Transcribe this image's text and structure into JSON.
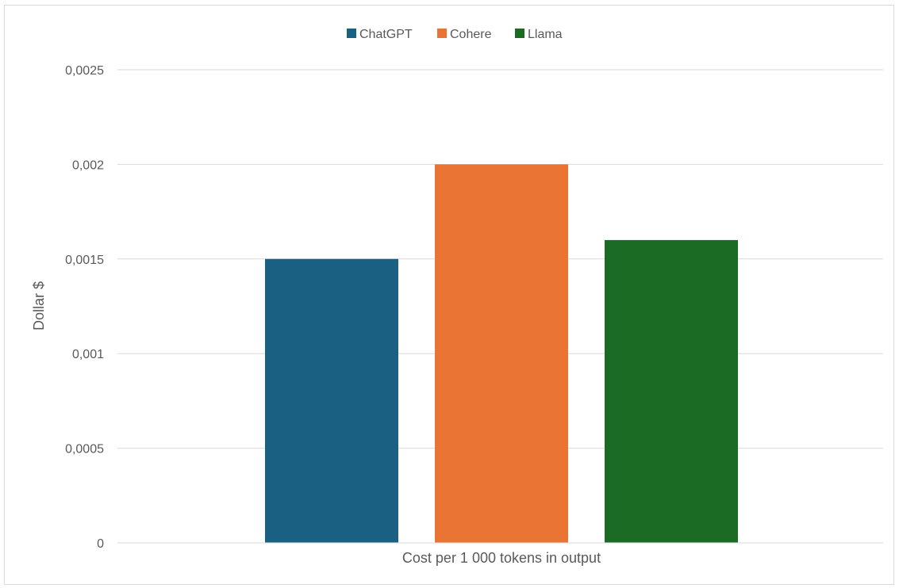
{
  "chart_data": {
    "type": "bar",
    "categories": [
      "Cost per 1 000 tokens in output"
    ],
    "series": [
      {
        "name": "ChatGPT",
        "values": [
          0.0015
        ],
        "color": "#1a6083"
      },
      {
        "name": "Cohere",
        "values": [
          0.002
        ],
        "color": "#e97433"
      },
      {
        "name": "Llama",
        "values": [
          0.0016
        ],
        "color": "#1c6b25"
      }
    ],
    "title": "",
    "xlabel": "",
    "ylabel": "Dollar $",
    "ylim": [
      0,
      0.0025
    ],
    "yticks": [
      0,
      0.0005,
      0.001,
      0.0015,
      0.002,
      0.0025
    ],
    "ytick_labels": [
      "0",
      "0,0005",
      "0,001",
      "0,0015",
      "0,002",
      "0,0025"
    ],
    "grid": true,
    "legend_position": "top-center"
  }
}
